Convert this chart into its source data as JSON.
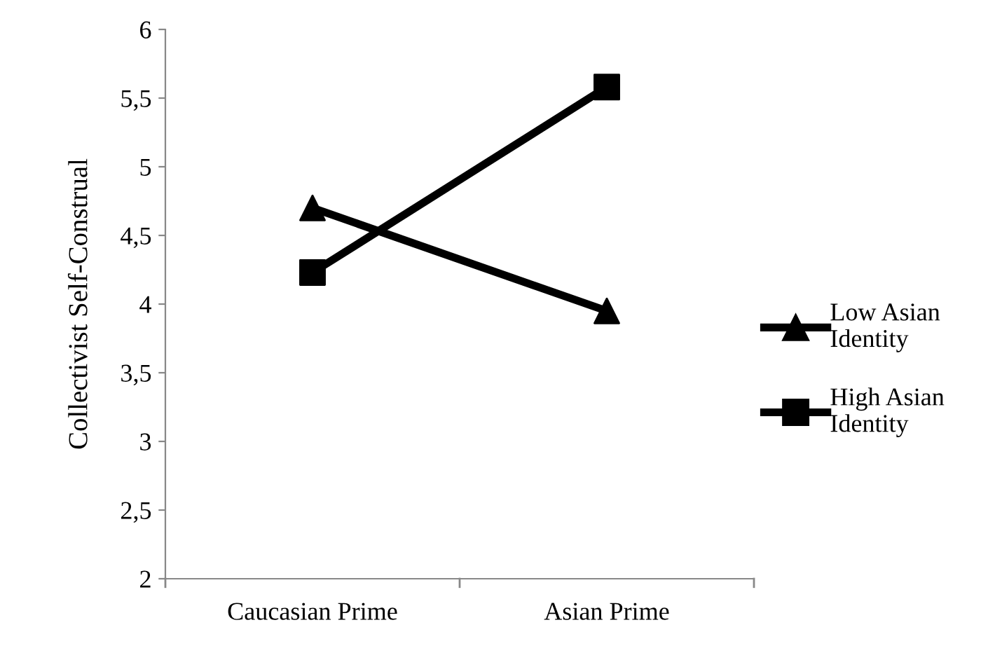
{
  "chart_data": {
    "type": "line",
    "ylabel": "Collectivist Self-Construal",
    "categories": [
      "Caucasian Prime",
      "Asian Prime"
    ],
    "series": [
      {
        "name": "Low Asian Identity",
        "color": "#000000",
        "values": [
          4.7,
          3.95
        ],
        "marker": "triangle"
      },
      {
        "name": "High Asian Identity",
        "color": "#000000",
        "values": [
          4.23,
          5.58
        ],
        "marker": "square"
      }
    ],
    "ylim": [
      2,
      6
    ],
    "yticks": [
      2,
      {
        "value": 2.5,
        "label": "2,5"
      },
      3,
      {
        "value": 3.5,
        "label": "3,5"
      },
      4,
      {
        "value": 4.5,
        "label": "4,5"
      },
      5,
      {
        "value": 5.5,
        "label": "5,5"
      },
      6
    ],
    "grid": false,
    "legend": "right",
    "line_style": "solid"
  }
}
